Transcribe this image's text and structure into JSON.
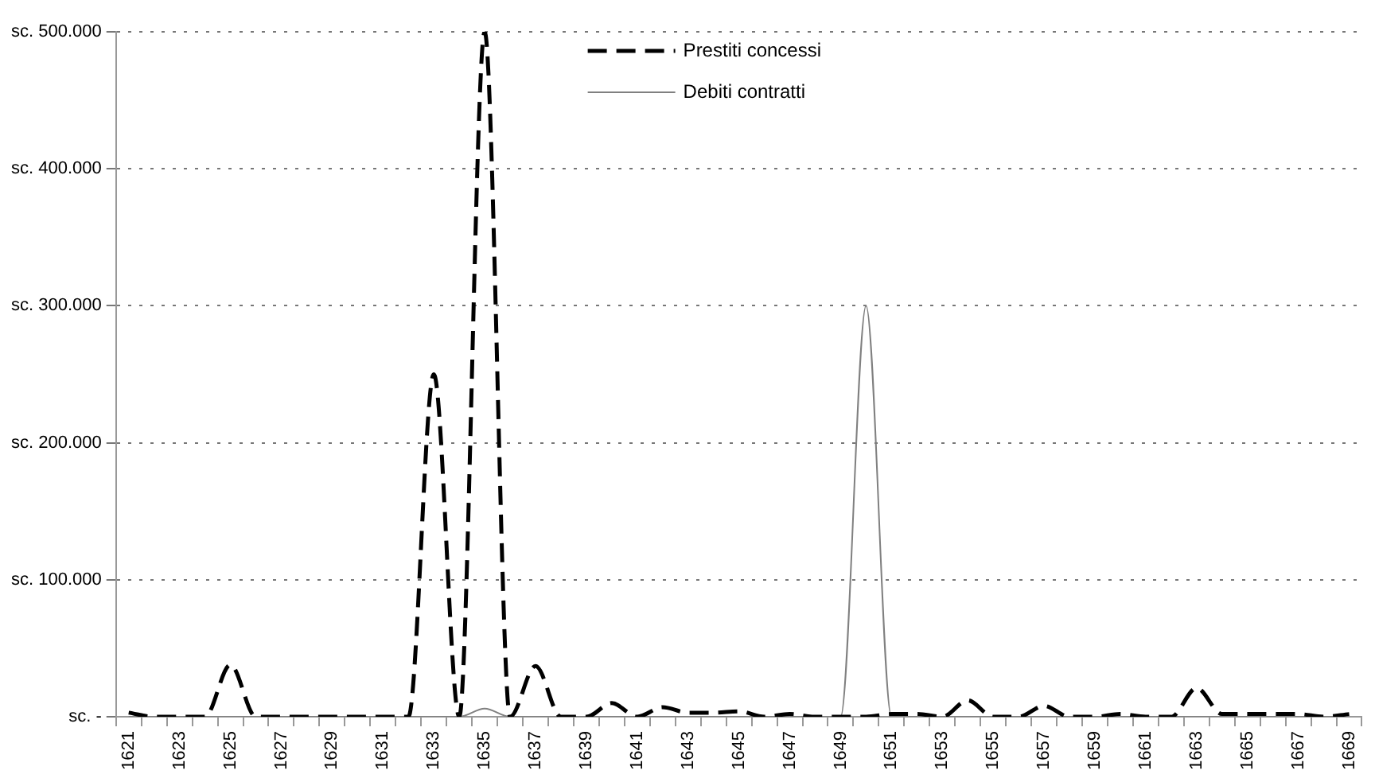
{
  "chart_data": {
    "type": "line",
    "categories": [
      "1621",
      null,
      "1623",
      null,
      "1625",
      null,
      "1627",
      null,
      "1629",
      null,
      "1631",
      null,
      "1633",
      null,
      "1635",
      null,
      "1637",
      null,
      "1639",
      null,
      "1641",
      null,
      "1643",
      null,
      "1645",
      null,
      "1647",
      null,
      "1649",
      null,
      "1651",
      null,
      "1653",
      null,
      "1655",
      null,
      "1657",
      null,
      "1659",
      null,
      "1661",
      null,
      "1663",
      null,
      "1665",
      null,
      "1667",
      null,
      "1669"
    ],
    "series": [
      {
        "name": "Prestiti concessi",
        "color": "#000000",
        "line_style": "dashed",
        "values": [
          3000,
          0,
          0,
          0,
          38000,
          0,
          0,
          0,
          0,
          0,
          0,
          0,
          250000,
          0,
          500000,
          0,
          37000,
          0,
          0,
          10000,
          0,
          7000,
          3000,
          3000,
          4000,
          0,
          2000,
          0,
          0,
          0,
          2000,
          2000,
          0,
          12000,
          0,
          0,
          8000,
          0,
          0,
          2000,
          0,
          0,
          21000,
          2000,
          2000,
          2000,
          2000,
          0,
          2000
        ]
      },
      {
        "name": "Debiti contratti",
        "color": "#808080",
        "line_style": "solid",
        "values": [
          0,
          0,
          0,
          0,
          0,
          0,
          0,
          0,
          0,
          0,
          0,
          0,
          0,
          0,
          6000,
          0,
          0,
          0,
          0,
          0,
          0,
          0,
          0,
          0,
          0,
          0,
          0,
          0,
          0,
          300000,
          0,
          0,
          0,
          0,
          0,
          0,
          0,
          0,
          0,
          0,
          0,
          0,
          0,
          0,
          0,
          0,
          0,
          0,
          0
        ]
      }
    ],
    "ylim": [
      0,
      500000
    ],
    "yticks": [
      {
        "value": 0,
        "label": "sc. -"
      },
      {
        "value": 100000,
        "label": "sc. 100.000"
      },
      {
        "value": 200000,
        "label": "sc. 200.000"
      },
      {
        "value": 300000,
        "label": "sc. 300.000"
      },
      {
        "value": 400000,
        "label": "sc. 400.000"
      },
      {
        "value": 500000,
        "label": "sc. 500.000"
      }
    ],
    "grid": "y",
    "legend": "top",
    "marker": "none"
  }
}
